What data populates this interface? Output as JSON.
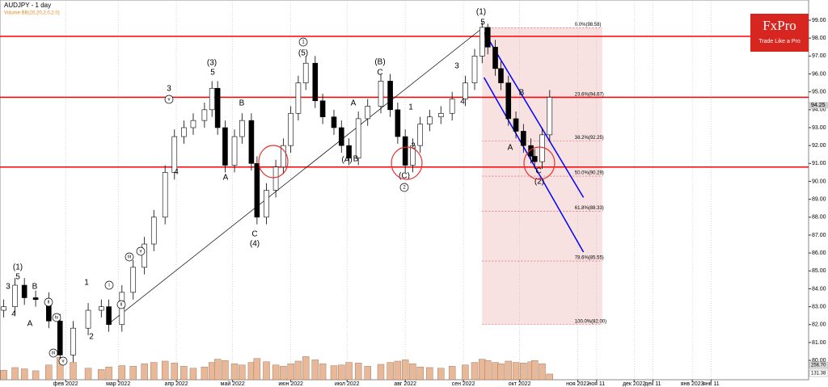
{
  "chart_data": {
    "type": "candlestick",
    "title": "AUDJPY - 1 day",
    "subtitle": "Volume BB(20,20,2.0,2.0)",
    "logo": {
      "name": "FxPro",
      "tagline": "Trade Like a Pro"
    },
    "x": [
      -1,
      5,
      10,
      16,
      23,
      29,
      36,
      44,
      51,
      55,
      62,
      68,
      74,
      79,
      85,
      90,
      95,
      100,
      106,
      110,
      113,
      117,
      122,
      126,
      131,
      134,
      139,
      144,
      148,
      152,
      156,
      160,
      165,
      169,
      175,
      179,
      183,
      188,
      193,
      200,
      205,
      209,
      213,
      217,
      221,
      226,
      232,
      238,
      245,
      250,
      254,
      257,
      261,
      264,
      268,
      272,
      276,
      280,
      282,
      286,
      290
    ],
    "open": [
      82.8,
      83.0,
      84.2,
      83.5,
      83.4,
      82.2,
      80.3,
      81.8,
      82.8,
      83.0,
      82.0,
      83.8,
      85.2,
      86.5,
      88.0,
      90.5,
      92.5,
      93.0,
      93.4,
      94.0,
      95.2,
      93.0,
      90.9,
      92.5,
      93.4,
      91.0,
      88.0,
      89.5,
      90.8,
      92.0,
      93.8,
      95.5,
      96.6,
      94.5,
      93.6,
      93.0,
      92.0,
      91.3,
      93.5,
      94.2,
      95.6,
      94.0,
      92.5,
      90.9,
      92.0,
      93.2,
      93.6,
      93.8,
      94.6,
      95.5,
      97.0,
      98.6,
      97.5,
      96.3,
      95.5,
      93.5,
      92.8,
      92.0,
      91.4,
      91.1,
      92.6
    ],
    "high": [
      83.4,
      84.6,
      84.6,
      83.9,
      83.8,
      82.6,
      82.2,
      83.2,
      83.4,
      83.4,
      84.2,
      85.6,
      86.9,
      88.4,
      90.9,
      92.9,
      93.4,
      93.8,
      94.4,
      95.6,
      95.6,
      93.4,
      92.9,
      93.8,
      93.8,
      91.4,
      89.9,
      91.2,
      92.4,
      94.2,
      95.9,
      97.0,
      97.0,
      94.9,
      94.0,
      93.4,
      92.4,
      93.9,
      94.6,
      96.0,
      96.0,
      94.4,
      92.9,
      92.4,
      93.6,
      94.0,
      94.2,
      95.0,
      95.9,
      97.4,
      98.9,
      98.8,
      97.9,
      96.7,
      95.9,
      93.9,
      93.2,
      92.4,
      91.8,
      93.0,
      95.1
    ],
    "low": [
      82.4,
      82.6,
      83.1,
      83.0,
      81.8,
      79.9,
      79.9,
      81.4,
      82.4,
      81.6,
      81.6,
      83.4,
      84.8,
      86.1,
      87.6,
      90.1,
      92.1,
      92.6,
      93.0,
      93.6,
      92.6,
      90.5,
      90.5,
      92.1,
      90.6,
      87.6,
      87.6,
      89.1,
      90.4,
      91.6,
      93.4,
      95.1,
      94.1,
      93.2,
      92.6,
      91.6,
      90.9,
      90.9,
      93.1,
      93.8,
      93.6,
      92.1,
      90.5,
      90.5,
      91.6,
      92.8,
      93.2,
      93.4,
      94.2,
      95.1,
      96.6,
      97.1,
      95.9,
      95.1,
      93.1,
      92.4,
      91.6,
      91.0,
      90.7,
      90.7,
      92.2
    ],
    "close": [
      83.0,
      84.2,
      83.5,
      83.4,
      82.2,
      80.3,
      81.8,
      82.8,
      83.0,
      82.0,
      83.8,
      85.2,
      86.5,
      88.0,
      90.5,
      92.5,
      93.0,
      93.4,
      94.0,
      95.2,
      93.0,
      90.9,
      92.5,
      93.4,
      91.0,
      88.0,
      89.5,
      90.8,
      92.0,
      93.8,
      95.5,
      96.6,
      94.5,
      93.6,
      93.0,
      92.0,
      91.3,
      93.5,
      94.2,
      95.6,
      94.0,
      92.5,
      90.9,
      92.0,
      93.2,
      93.6,
      93.8,
      94.6,
      95.5,
      97.0,
      98.6,
      97.5,
      96.3,
      95.5,
      93.5,
      92.8,
      92.0,
      91.4,
      91.1,
      92.6,
      94.7
    ],
    "volume": [
      180,
      220,
      200,
      170,
      260,
      380,
      300,
      210,
      190,
      230,
      250,
      240,
      280,
      300,
      320,
      290,
      240,
      210,
      230,
      300,
      350,
      330,
      280,
      260,
      300,
      360,
      310,
      260,
      240,
      280,
      320,
      390,
      340,
      280,
      250,
      260,
      300,
      290,
      240,
      270,
      300,
      320,
      340,
      280,
      230,
      220,
      210,
      240,
      260,
      300,
      350,
      330,
      300,
      280,
      320,
      300,
      290,
      310,
      330,
      280,
      120
    ],
    "up_color": "#ffffff",
    "down_color": "#000000",
    "xlim": [
      -3,
      428
    ],
    "xticks": [
      {
        "value": 32,
        "label": "фев 2022"
      },
      {
        "value": 60,
        "label": "мар 2022"
      },
      {
        "value": 91,
        "label": "апр 2022"
      },
      {
        "value": 121,
        "label": "май 2022"
      },
      {
        "value": 152,
        "label": "июн 2022"
      },
      {
        "value": 182,
        "label": "июл 2022"
      },
      {
        "value": 213,
        "label": "авг 2022"
      },
      {
        "value": 244,
        "label": "сен 2022"
      },
      {
        "value": 274,
        "label": "окт 2022"
      },
      {
        "value": 305,
        "label": "ноя 2022"
      },
      {
        "value": 315,
        "label": "ноя 11"
      },
      {
        "value": 335,
        "label": "дек 2022"
      },
      {
        "value": 345,
        "label": "дек 11"
      },
      {
        "value": 366,
        "label": "янв 2023"
      },
      {
        "value": 376,
        "label": "янв 11"
      }
    ],
    "ylim": [
      78.92,
      100.13
    ],
    "yticks": [
      {
        "value": 80,
        "label": "80.00"
      },
      {
        "value": 81,
        "label": "81.00"
      },
      {
        "value": 82,
        "label": "82.00"
      },
      {
        "value": 83,
        "label": "83.00"
      },
      {
        "value": 84,
        "label": "84.00"
      },
      {
        "value": 85,
        "label": "85.00"
      },
      {
        "value": 86,
        "label": "86.00"
      },
      {
        "value": 87,
        "label": "87.00"
      },
      {
        "value": 88,
        "label": "88.00"
      },
      {
        "value": 89,
        "label": "89.00"
      },
      {
        "value": 90,
        "label": "90.00"
      },
      {
        "value": 91,
        "label": "91.00"
      },
      {
        "value": 92,
        "label": "92.00"
      },
      {
        "value": 93,
        "label": "93.00"
      },
      {
        "value": 94,
        "label": "94.00"
      },
      {
        "value": 95,
        "label": "95.00"
      },
      {
        "value": 96,
        "label": "96.00"
      },
      {
        "value": 97,
        "label": "97.00"
      },
      {
        "value": 98,
        "label": "98.00"
      },
      {
        "value": 99,
        "label": "99.00"
      }
    ],
    "last_price": 94.25,
    "volume_ticks": [
      {
        "value": 256.7,
        "label": "256.70"
      },
      {
        "value": 131.38,
        "label": "131.38"
      }
    ],
    "levels": [
      98.1,
      94.7,
      90.8
    ],
    "level_color": "#ff0000",
    "fibo": {
      "x": [
        254,
        318
      ],
      "color": "#f5dada",
      "levels": [
        {
          "value": 98.58,
          "label": "0.0%(98.58)"
        },
        {
          "value": 94.67,
          "label": "23.6%(94.67)"
        },
        {
          "value": 92.25,
          "label": "38.2%(92.25)"
        },
        {
          "value": 90.29,
          "label": "50.0%(90.29)"
        },
        {
          "value": 88.33,
          "label": "61.8%(88.33)"
        },
        {
          "value": 85.55,
          "label": "78.6%(85.55)"
        },
        {
          "value": 82.0,
          "label": "100.0%(82.00)"
        }
      ]
    },
    "trendlines": [
      {
        "x": [
          55,
          254
        ],
        "y": [
          82.05,
          98.55
        ],
        "color": "#000000"
      },
      {
        "x": [
          255,
          308
        ],
        "y": [
          98.35,
          89.1
        ],
        "color": "#0000ff"
      },
      {
        "x": [
          255,
          308
        ],
        "y": [
          95.8,
          86.05
        ],
        "color": "#0000ff"
      }
    ],
    "wave_labels": [
      "3",
      "(1)",
      "5",
      "4",
      "B",
      "A",
      "ii",
      "iv",
      "iii",
      "v",
      "1",
      "2",
      "i",
      "ii",
      "iii",
      "v",
      "3",
      "v",
      "4",
      "(3)",
      "5",
      "B",
      "A",
      "C",
      "(4)",
      "1",
      "(5)",
      "A",
      "(A)",
      "B",
      "(B)",
      "C",
      "1",
      "2",
      "(C)",
      "2",
      "3",
      "4",
      "(1)",
      "5",
      "B",
      "A",
      "C",
      "(2)"
    ],
    "grid": true
  }
}
